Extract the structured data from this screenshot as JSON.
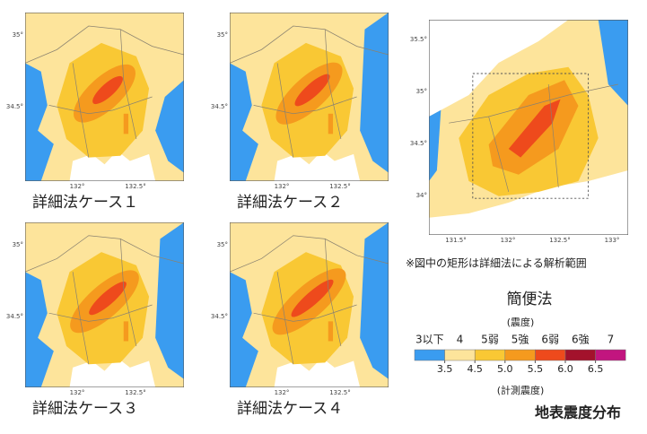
{
  "maps": [
    {
      "caption": "詳細法ケース１",
      "lat_labels": [
        "35°",
        "34.5°"
      ],
      "lon_labels": [
        "132°",
        "132.5°"
      ]
    },
    {
      "caption": "詳細法ケース２",
      "lat_labels": [
        "35°",
        "34.5°"
      ],
      "lon_labels": [
        "132°",
        "132.5°"
      ]
    },
    {
      "caption": "詳細法ケース３",
      "lat_labels": [
        "35°",
        "34.5°"
      ],
      "lon_labels": [
        "132°",
        "132.5°"
      ]
    },
    {
      "caption": "詳細法ケース４",
      "lat_labels": [
        "35°",
        "34.5°"
      ],
      "lon_labels": [
        "132°",
        "132.5°"
      ]
    },
    {
      "caption": "簡便法",
      "lat_labels": [
        "35.5°",
        "35°",
        "34.5°",
        "34°"
      ],
      "lon_labels": [
        "131.5°",
        "132°",
        "132.5°",
        "133°"
      ]
    }
  ],
  "note": "※図中の矩形は詳細法による解析範囲",
  "legend": {
    "title": "(震度)",
    "classes": [
      {
        "label": "3以下",
        "color": "#3a9cf0"
      },
      {
        "label": "4",
        "color": "#fde49b"
      },
      {
        "label": "5弱",
        "color": "#f9c834"
      },
      {
        "label": "5強",
        "color": "#f59a1e"
      },
      {
        "label": "6弱",
        "color": "#ee4a1c"
      },
      {
        "label": "6強",
        "color": "#a3122c"
      },
      {
        "label": "7",
        "color": "#c2157f"
      }
    ],
    "ticks": [
      3.5,
      4.5,
      {
        "value": 5,
        "label": "5.0"
      },
      5.5,
      {
        "value": 6,
        "label": "6.0"
      },
      6.5
    ],
    "axis_label": "(計測震度)"
  },
  "title": "地表震度分布"
}
